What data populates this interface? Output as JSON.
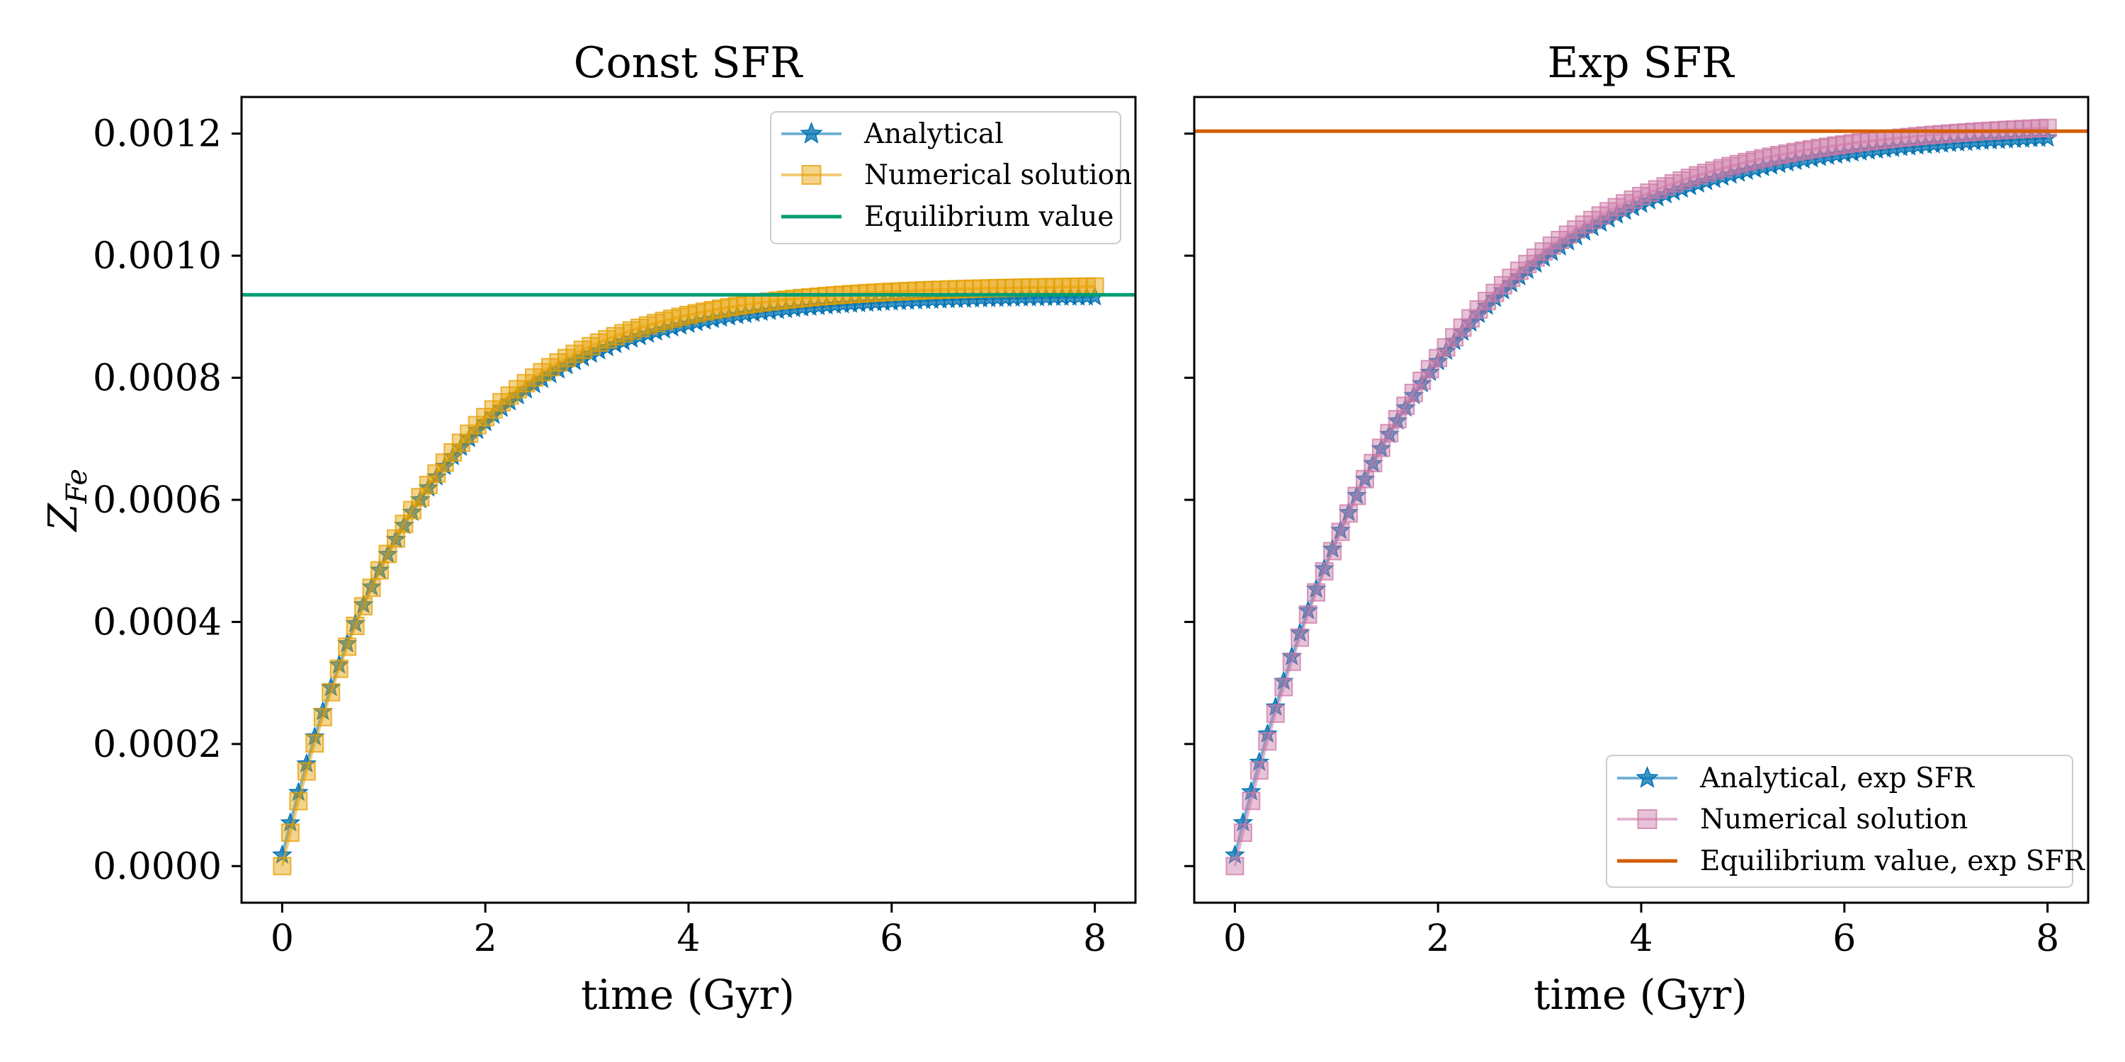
{
  "chart_data": [
    {
      "type": "line",
      "title": "Const SFR",
      "xlabel": "time (Gyr)",
      "ylabel": "Z_Fe",
      "xlim": [
        -0.4,
        8.4
      ],
      "ylim": [
        -6e-05,
        0.00126
      ],
      "xticks": [
        0,
        2,
        4,
        6,
        8
      ],
      "xtick_labels": [
        "0",
        "2",
        "4",
        "6",
        "8"
      ],
      "yticks": [
        0,
        0.0002,
        0.0004,
        0.0006,
        0.0008,
        0.001,
        0.0012
      ],
      "ytick_labels": [
        "0.0000",
        "0.0002",
        "0.0004",
        "0.0006",
        "0.0008",
        "0.0010",
        "0.0012"
      ],
      "grid": false,
      "legend_position": "top-right",
      "curve": {
        "t_start": 0,
        "t_end": 8,
        "n_points": 101,
        "tau_gyr": 1.35
      },
      "series": [
        {
          "name": "Analytical",
          "marker": "star",
          "color": "#0072B2",
          "equilibrium": 0.000935,
          "initial": 1.8e-05
        },
        {
          "name": "Numerical solution",
          "marker": "square",
          "color": "#E69F00",
          "equilibrium": 0.000952,
          "initial": 0.0
        },
        {
          "name": "Equilibrium value",
          "marker": "hline",
          "color": "#009E73",
          "value": 0.000936
        }
      ]
    },
    {
      "type": "line",
      "title": "Exp SFR",
      "xlabel": "time (Gyr)",
      "xlim": [
        -0.4,
        8.4
      ],
      "ylim": [
        -6e-05,
        0.00126
      ],
      "xticks": [
        0,
        2,
        4,
        6,
        8
      ],
      "xtick_labels": [
        "0",
        "2",
        "4",
        "6",
        "8"
      ],
      "yticks": [
        0,
        0.0002,
        0.0004,
        0.0006,
        0.0008,
        0.001,
        0.0012
      ],
      "grid": false,
      "legend_position": "bottom-right",
      "curve": {
        "t_start": 0,
        "t_end": 8,
        "n_points": 101,
        "tau_gyr": 1.75
      },
      "series": [
        {
          "name": "Analytical, exp SFR",
          "marker": "star",
          "color": "#0072B2",
          "equilibrium": 0.001205,
          "initial": 1.8e-05
        },
        {
          "name": "Numerical solution",
          "marker": "square",
          "color": "#CC79A7",
          "equilibrium": 0.001222,
          "initial": 0.0
        },
        {
          "name": "Equilibrium value, exp SFR",
          "marker": "hline",
          "color": "#D55E00",
          "value": 0.001204
        }
      ]
    }
  ]
}
